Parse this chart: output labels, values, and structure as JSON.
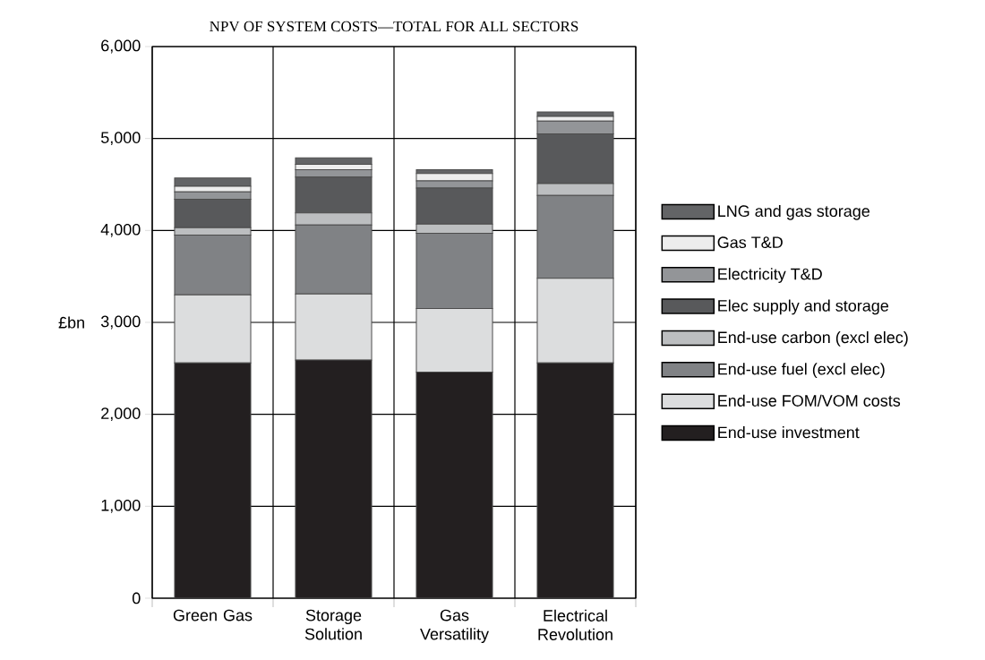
{
  "chart_data": {
    "type": "bar",
    "stacked": true,
    "title": "NPV OF SYSTEM COSTS—TOTAL FOR ALL SECTORS",
    "ylabel": "£bn",
    "categories": [
      "Green Gas",
      "Storage Solution",
      "Gas Versatility",
      "Electrical Revolution"
    ],
    "series": [
      {
        "name": "End-use investment",
        "color": "#231f20",
        "values": [
          2560,
          2590,
          2460,
          2560
        ]
      },
      {
        "name": "End-use FOM/VOM costs",
        "color": "#dcddde",
        "values": [
          740,
          720,
          690,
          920
        ]
      },
      {
        "name": "End-use fuel (excl elec)",
        "color": "#808285",
        "values": [
          650,
          750,
          820,
          900
        ]
      },
      {
        "name": "End-use carbon (excl elec)",
        "color": "#bcbec0",
        "values": [
          80,
          130,
          100,
          130
        ]
      },
      {
        "name": "Elec supply and storage",
        "color": "#58595b",
        "values": [
          310,
          390,
          390,
          540
        ]
      },
      {
        "name": "Electricity T&D",
        "color": "#939598",
        "values": [
          80,
          80,
          80,
          140
        ]
      },
      {
        "name": "Gas T&D",
        "color": "#ededed",
        "values": [
          60,
          60,
          80,
          50
        ]
      },
      {
        "name": "LNG and gas storage",
        "color": "#636466",
        "values": [
          90,
          70,
          40,
          50
        ]
      }
    ],
    "ylim": [
      0,
      6000
    ],
    "yticks": [
      0,
      {
        "value": 1000,
        "label": "1,000"
      },
      {
        "value": 2000,
        "label": "2,000"
      },
      {
        "value": 3000,
        "label": "3,000"
      },
      {
        "value": 4000,
        "label": "4,000"
      },
      {
        "value": 5000,
        "label": "5,000"
      },
      {
        "value": 6000,
        "label": "6,000"
      }
    ],
    "grid": true,
    "legend": "right"
  }
}
